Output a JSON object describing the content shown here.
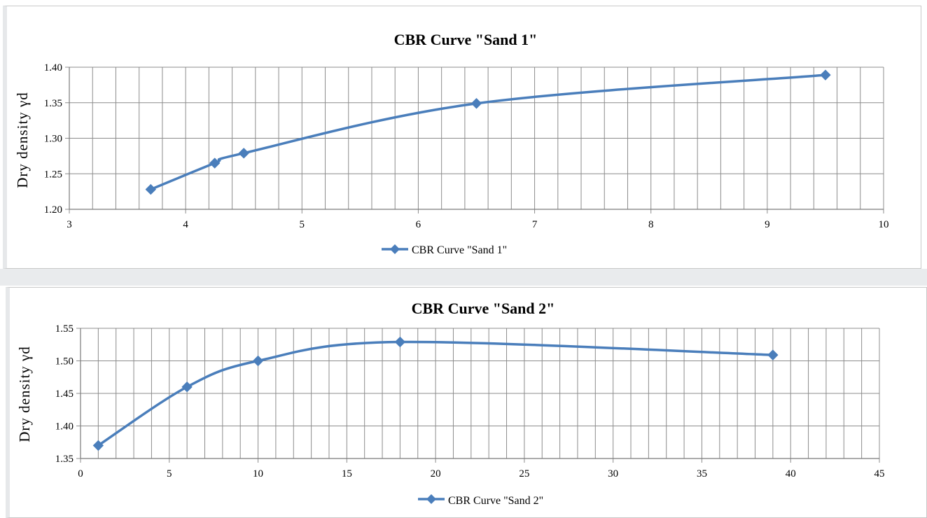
{
  "chart_data": [
    {
      "type": "line",
      "title": "CBR Curve \"Sand 1\"",
      "xlabel": "",
      "ylabel": "Dry density γd",
      "xlim": [
        3,
        10
      ],
      "ylim": [
        1.2,
        1.4
      ],
      "xticks": [
        "3",
        "4",
        "5",
        "6",
        "7",
        "8",
        "9",
        "10"
      ],
      "yticks": [
        "1.20",
        "1.25",
        "1.30",
        "1.35",
        "1.40"
      ],
      "minor_x_step": 0.2,
      "grid": true,
      "legend": "bottom",
      "color": "#4a7ebb",
      "series": [
        {
          "name": "CBR Curve \"Sand 1\"",
          "x": [
            3.7,
            4.25,
            4.5,
            6.5,
            9.5
          ],
          "y": [
            1.228,
            1.265,
            1.279,
            1.349,
            1.389
          ]
        }
      ]
    },
    {
      "type": "line",
      "title": "CBR Curve \"Sand 2\"",
      "xlabel": "",
      "ylabel": "Dry density γd",
      "xlim": [
        0,
        45
      ],
      "ylim": [
        1.35,
        1.55
      ],
      "xticks": [
        "0",
        "5",
        "10",
        "15",
        "20",
        "25",
        "30",
        "35",
        "40",
        "45"
      ],
      "yticks": [
        "1.35",
        "1.40",
        "1.45",
        "1.50",
        "1.55"
      ],
      "minor_x_step": 1,
      "grid": true,
      "legend": "bottom",
      "color": "#4a7ebb",
      "series": [
        {
          "name": "CBR Curve \"Sand 2\"",
          "x": [
            1,
            6,
            10,
            18,
            39
          ],
          "y": [
            1.37,
            1.46,
            1.5,
            1.529,
            1.509
          ]
        }
      ]
    }
  ]
}
